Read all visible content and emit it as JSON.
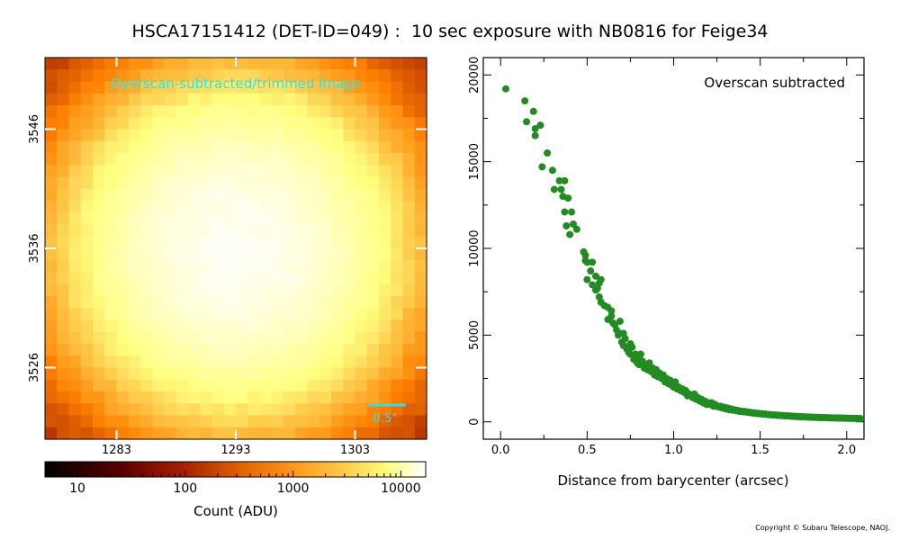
{
  "title": "HSCA17151412 (DET-ID=049) :  10 sec exposure with NB0816 for Feige34",
  "copyright": "Copyright © Subaru Telescope, NAOJ.",
  "image_panel": {
    "label": "Overscan-subtracted/trimmed image",
    "label_color": "#33e0e0",
    "scale_bar_label": "0.5\"",
    "x_ticks": [
      1283,
      1293,
      1303
    ],
    "y_ticks": [
      3526,
      3536,
      3546
    ],
    "x_range": [
      1277,
      1309
    ],
    "y_range": [
      3520,
      3552
    ],
    "peak_pixel": [
      1293,
      3536
    ]
  },
  "colorbar": {
    "scale": "log",
    "range": [
      5,
      17000
    ],
    "tick_labels": [
      "10",
      "100",
      "1000",
      "10000"
    ],
    "tick_values": [
      10,
      100,
      1000,
      10000
    ],
    "label": "Count (ADU)",
    "colormap": "afmhot"
  },
  "chart_data": {
    "type": "scatter",
    "annotation": "Overscan subtracted",
    "xlabel": "Distance from barycenter (arcsec)",
    "ylabel": "",
    "xlim": [
      -0.1,
      2.1
    ],
    "ylim": [
      -1000,
      21000
    ],
    "x_ticks": [
      0.0,
      0.5,
      1.0,
      1.5,
      2.0
    ],
    "x_tick_labels": [
      "0.0",
      "0.5",
      "1.0",
      "1.5",
      "2.0"
    ],
    "y_ticks": [
      0,
      5000,
      10000,
      15000,
      20000
    ],
    "y_tick_labels": [
      "0",
      "5000",
      "10000",
      "15000",
      "20000"
    ],
    "marker_color": "#228b22",
    "grid": false,
    "points": [
      [
        0.03,
        19200
      ],
      [
        0.14,
        18500
      ],
      [
        0.15,
        17300
      ],
      [
        0.19,
        17900
      ],
      [
        0.2,
        16900
      ],
      [
        0.2,
        16500
      ],
      [
        0.23,
        17100
      ],
      [
        0.24,
        14700
      ],
      [
        0.27,
        15500
      ],
      [
        0.3,
        14500
      ],
      [
        0.31,
        13400
      ],
      [
        0.34,
        13900
      ],
      [
        0.35,
        13400
      ],
      [
        0.36,
        13000
      ],
      [
        0.37,
        13900
      ],
      [
        0.37,
        12100
      ],
      [
        0.38,
        11300
      ],
      [
        0.39,
        12900
      ],
      [
        0.4,
        10800
      ],
      [
        0.41,
        12100
      ],
      [
        0.42,
        11400
      ],
      [
        0.44,
        11100
      ],
      [
        0.48,
        9800
      ],
      [
        0.49,
        9600
      ],
      [
        0.49,
        9300
      ],
      [
        0.5,
        9200
      ],
      [
        0.5,
        8200
      ],
      [
        0.52,
        8700
      ],
      [
        0.53,
        9200
      ],
      [
        0.53,
        7900
      ],
      [
        0.55,
        7600
      ],
      [
        0.55,
        8400
      ],
      [
        0.56,
        7700
      ],
      [
        0.57,
        8000
      ],
      [
        0.57,
        7200
      ],
      [
        0.58,
        8200
      ],
      [
        0.58,
        6900
      ],
      [
        0.6,
        6700
      ],
      [
        0.62,
        6600
      ],
      [
        0.62,
        5900
      ],
      [
        0.64,
        6400
      ],
      [
        0.64,
        6100
      ],
      [
        0.65,
        5700
      ],
      [
        0.66,
        5600
      ],
      [
        0.67,
        5300
      ],
      [
        0.68,
        5000
      ],
      [
        0.69,
        5800
      ],
      [
        0.69,
        5100
      ],
      [
        0.7,
        4600
      ],
      [
        0.71,
        5100
      ],
      [
        0.71,
        4400
      ],
      [
        0.72,
        4800
      ],
      [
        0.73,
        4200
      ],
      [
        0.74,
        4000
      ],
      [
        0.75,
        4500
      ],
      [
        0.75,
        3900
      ],
      [
        0.76,
        4300
      ],
      [
        0.77,
        3600
      ],
      [
        0.78,
        3900
      ],
      [
        0.79,
        3400
      ],
      [
        0.8,
        3700
      ],
      [
        0.8,
        3300
      ],
      [
        0.81,
        3900
      ],
      [
        0.82,
        3500
      ],
      [
        0.83,
        3100
      ],
      [
        0.84,
        3300
      ],
      [
        0.85,
        3000
      ],
      [
        0.86,
        3400
      ],
      [
        0.87,
        2900
      ],
      [
        0.88,
        3100
      ],
      [
        0.89,
        2700
      ],
      [
        0.9,
        3000
      ],
      [
        0.91,
        2600
      ],
      [
        0.92,
        2800
      ],
      [
        0.93,
        2500
      ],
      [
        0.94,
        2700
      ],
      [
        0.95,
        2300
      ],
      [
        0.96,
        2500
      ],
      [
        0.97,
        2200
      ],
      [
        0.98,
        2400
      ],
      [
        0.99,
        2100
      ],
      [
        1.0,
        2000
      ],
      [
        1.01,
        2300
      ],
      [
        1.02,
        1900
      ],
      [
        1.03,
        2000
      ],
      [
        1.04,
        1800
      ],
      [
        1.05,
        1900
      ],
      [
        1.06,
        1700
      ],
      [
        1.07,
        1800
      ],
      [
        1.08,
        1500
      ],
      [
        1.09,
        1600
      ],
      [
        1.1,
        1500
      ],
      [
        1.11,
        1400
      ],
      [
        1.12,
        1600
      ],
      [
        1.13,
        1300
      ],
      [
        1.14,
        1400
      ],
      [
        1.15,
        1200
      ],
      [
        1.16,
        1300
      ],
      [
        1.17,
        1100
      ],
      [
        1.18,
        1200
      ],
      [
        1.19,
        1000
      ],
      [
        1.2,
        1100
      ],
      [
        1.21,
        1000
      ],
      [
        1.22,
        1100
      ],
      [
        1.23,
        900
      ],
      [
        1.24,
        1000
      ],
      [
        1.25,
        900
      ],
      [
        1.26,
        850
      ],
      [
        1.27,
        900
      ],
      [
        1.28,
        800
      ],
      [
        1.29,
        850
      ],
      [
        1.3,
        750
      ],
      [
        1.31,
        800
      ],
      [
        1.32,
        700
      ],
      [
        1.33,
        750
      ],
      [
        1.34,
        680
      ],
      [
        1.35,
        700
      ],
      [
        1.36,
        640
      ],
      [
        1.37,
        660
      ],
      [
        1.38,
        600
      ],
      [
        1.39,
        620
      ],
      [
        1.4,
        580
      ],
      [
        1.41,
        600
      ],
      [
        1.42,
        560
      ],
      [
        1.43,
        570
      ],
      [
        1.44,
        530
      ],
      [
        1.45,
        540
      ],
      [
        1.46,
        500
      ],
      [
        1.47,
        520
      ],
      [
        1.48,
        480
      ],
      [
        1.49,
        490
      ],
      [
        1.5,
        460
      ],
      [
        1.51,
        470
      ],
      [
        1.52,
        440
      ],
      [
        1.53,
        450
      ],
      [
        1.54,
        420
      ],
      [
        1.55,
        430
      ],
      [
        1.56,
        400
      ],
      [
        1.57,
        410
      ],
      [
        1.58,
        390
      ],
      [
        1.59,
        395
      ],
      [
        1.6,
        370
      ],
      [
        1.61,
        380
      ],
      [
        1.62,
        360
      ],
      [
        1.63,
        365
      ],
      [
        1.64,
        345
      ],
      [
        1.65,
        350
      ],
      [
        1.66,
        335
      ],
      [
        1.67,
        340
      ],
      [
        1.68,
        320
      ],
      [
        1.69,
        325
      ],
      [
        1.7,
        310
      ],
      [
        1.71,
        315
      ],
      [
        1.72,
        300
      ],
      [
        1.73,
        305
      ],
      [
        1.74,
        290
      ],
      [
        1.75,
        295
      ],
      [
        1.76,
        280
      ],
      [
        1.77,
        285
      ],
      [
        1.78,
        270
      ],
      [
        1.79,
        275
      ],
      [
        1.8,
        262
      ],
      [
        1.81,
        266
      ],
      [
        1.82,
        255
      ],
      [
        1.83,
        258
      ],
      [
        1.84,
        248
      ],
      [
        1.85,
        251
      ],
      [
        1.86,
        242
      ],
      [
        1.87,
        245
      ],
      [
        1.88,
        236
      ],
      [
        1.89,
        239
      ],
      [
        1.9,
        230
      ],
      [
        1.91,
        233
      ],
      [
        1.92,
        225
      ],
      [
        1.93,
        228
      ],
      [
        1.94,
        220
      ],
      [
        1.95,
        223
      ],
      [
        1.96,
        215
      ],
      [
        1.97,
        218
      ],
      [
        1.98,
        210
      ],
      [
        1.99,
        213
      ],
      [
        2.0,
        205
      ],
      [
        2.01,
        208
      ],
      [
        2.02,
        200
      ],
      [
        2.03,
        203
      ],
      [
        2.04,
        196
      ],
      [
        2.05,
        198
      ],
      [
        2.06,
        192
      ],
      [
        2.07,
        194
      ],
      [
        2.08,
        188
      ],
      [
        2.09,
        190
      ]
    ]
  }
}
